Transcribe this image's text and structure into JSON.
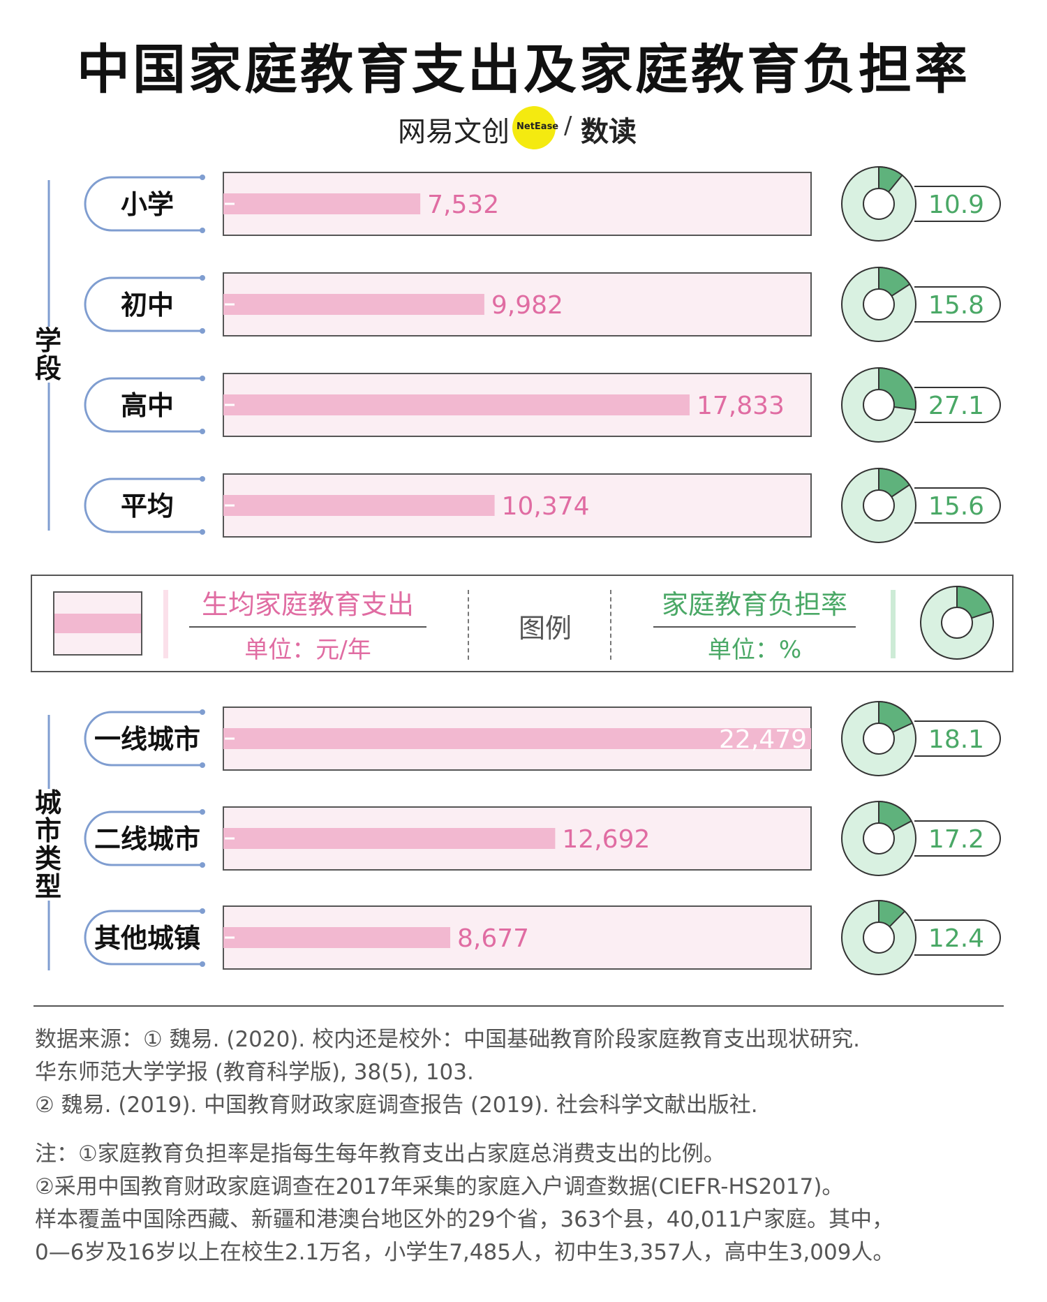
{
  "title": "中国家庭教育支出及家庭教育负担率",
  "brand": {
    "name": "网易文创",
    "badge": "NetEase",
    "sep": "/",
    "column": "数读"
  },
  "groups": [
    {
      "label": "学段",
      "chars": [
        "学",
        "段"
      ]
    },
    {
      "label": "城市类型",
      "chars": [
        "城",
        "市",
        "类",
        "型"
      ]
    }
  ],
  "legend": {
    "expense_title": "生均家庭教育支出",
    "expense_unit": "单位：元/年",
    "center": "图例",
    "rate_title": "家庭教育负担率",
    "rate_unit": "单位：%"
  },
  "colors": {
    "bar": "#f2b8d0",
    "bar_bg": "#fbeef3",
    "bar_label": "#e06ca2",
    "donut_fill": "#5fb27c",
    "donut_bg": "#d9f1e1",
    "rate_label": "#4aa866",
    "bracket": "#7f9dd0"
  },
  "chart_data": {
    "type": "bar",
    "categories": [
      "小学",
      "初中",
      "高中",
      "平均",
      "一线城市",
      "二线城市",
      "其他城镇"
    ],
    "series": [
      {
        "name": "生均家庭教育支出",
        "values": [
          7532,
          9982,
          17833,
          10374,
          22479,
          12692,
          8677
        ],
        "labels": [
          "7,532",
          "9,982",
          "17,833",
          "10,374",
          "22,479",
          "12,692",
          "8,677"
        ]
      },
      {
        "name": "家庭教育负担率",
        "values": [
          10.9,
          15.8,
          27.1,
          15.6,
          18.1,
          17.2,
          12.4
        ],
        "labels": [
          "10.9",
          "15.8",
          "27.1",
          "15.6",
          "18.1",
          "17.2",
          "12.4"
        ]
      }
    ],
    "xlim": [
      0,
      22479
    ]
  },
  "source": {
    "line1": "数据来源：① 魏易. (2020). 校内还是校外：中国基础教育阶段家庭教育支出现状研究.",
    "line2": "华东师范大学学报 (教育科学版), 38(5), 103.",
    "line3": "② 魏易. (2019). 中国教育财政家庭调查报告 (2019). 社会科学文献出版社."
  },
  "note": {
    "line1": "注：①家庭教育负担率是指每生每年教育支出占家庭总消费支出的比例。",
    "line2": "②采用中国教育财政家庭调查在2017年采集的家庭入户调查数据(CIEFR-HS2017)。",
    "line3": "样本覆盖中国除西藏、新疆和港澳台地区外的29个省，363个县，40,011户家庭。其中，",
    "line4": "0—6岁及16岁以上在校生2.1万名，小学生7,485人，初中生3,357人，高中生3,009人。"
  }
}
